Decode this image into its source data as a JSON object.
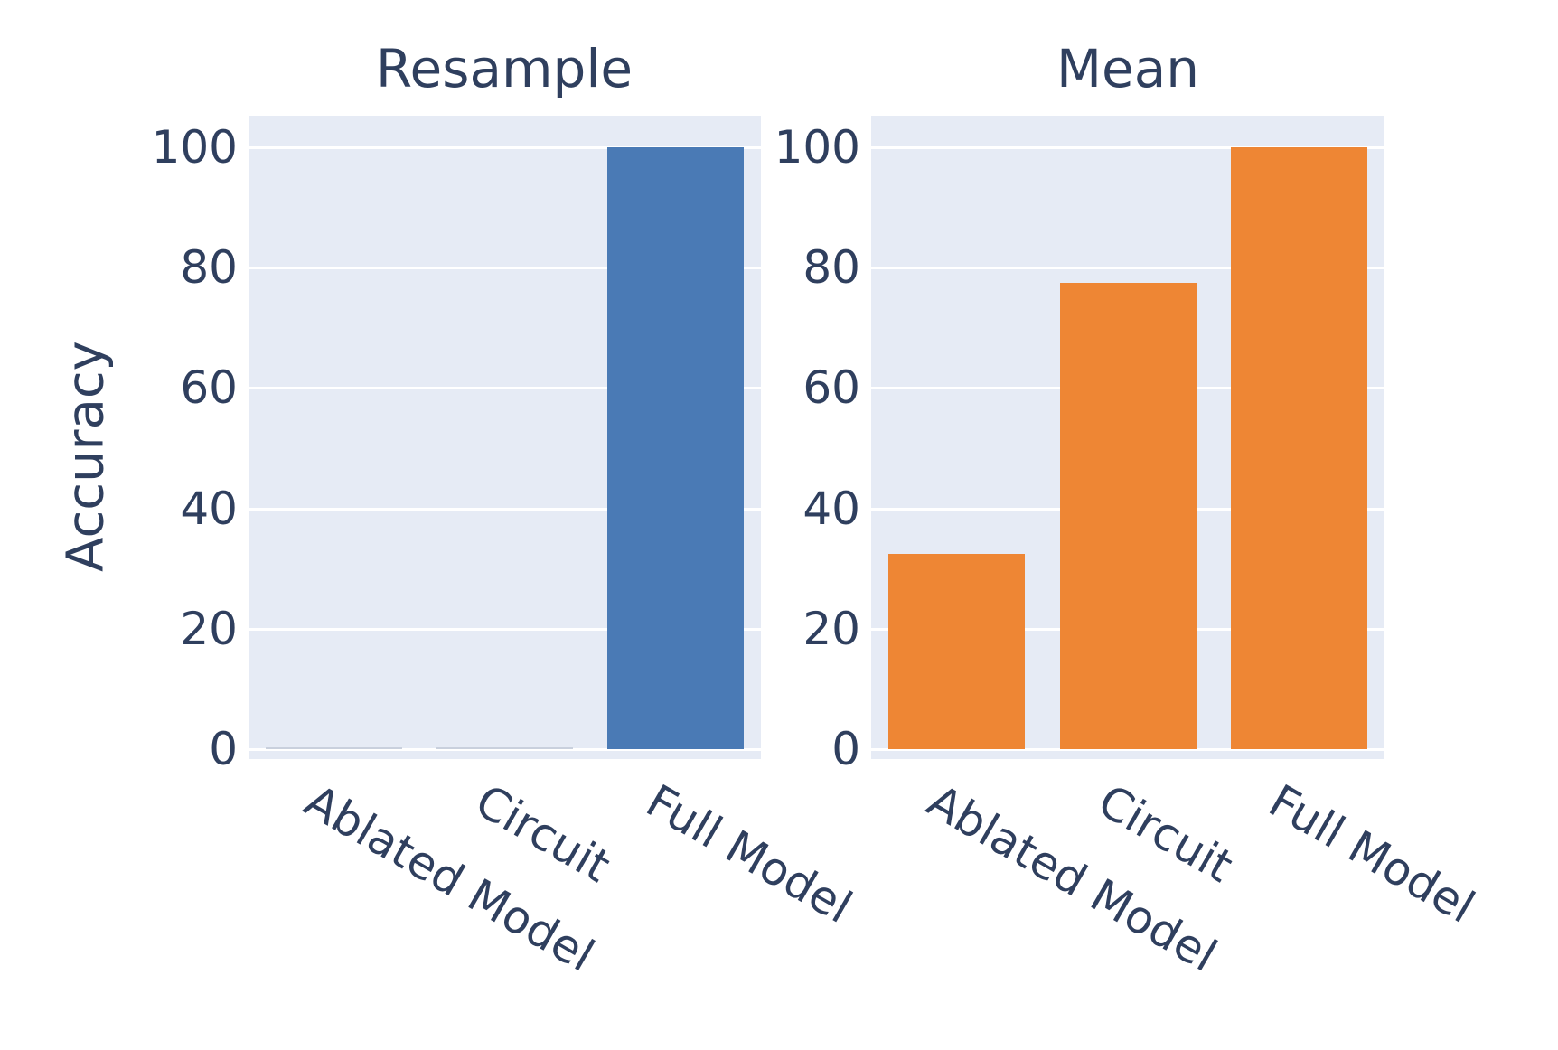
{
  "figure": {
    "ylabel": "Accuracy",
    "background_color": "#ffffff",
    "text_color": "#2f3f5e",
    "plot_background_color": "#e6ebf5",
    "gridline_color": "#ffffff"
  },
  "chart_data": [
    {
      "type": "bar",
      "title": "Resample",
      "categories": [
        "Ablated Model",
        "Circuit",
        "Full Model"
      ],
      "values": [
        0,
        0,
        100
      ],
      "bar_color": "#4a7ab5",
      "xlabel": "",
      "ylabel": "Accuracy",
      "ylim": [
        0,
        105
      ],
      "yticks": [
        0,
        20,
        40,
        60,
        80,
        100
      ],
      "grid": true,
      "legend": false,
      "xtick_rotation_deg": 30
    },
    {
      "type": "bar",
      "title": "Mean",
      "categories": [
        "Ablated Model",
        "Circuit",
        "Full Model"
      ],
      "values": [
        32.5,
        77.5,
        100
      ],
      "bar_color": "#ee8634",
      "xlabel": "",
      "ylabel": "Accuracy",
      "ylim": [
        0,
        105
      ],
      "yticks": [
        0,
        20,
        40,
        60,
        80,
        100
      ],
      "grid": true,
      "legend": false,
      "xtick_rotation_deg": 30
    }
  ]
}
